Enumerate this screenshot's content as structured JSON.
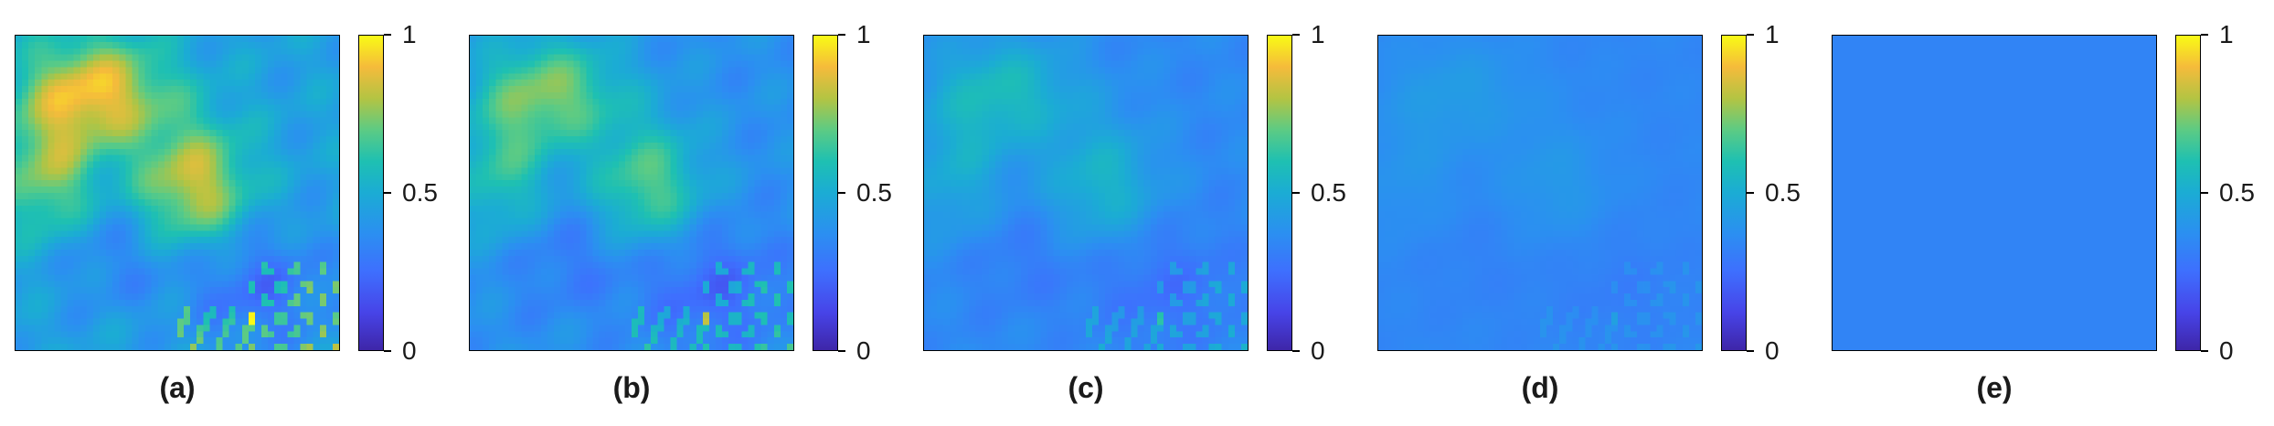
{
  "chart_data": [
    {
      "type": "heatmap",
      "label": "(a)",
      "level": 0.55,
      "contrast": 1.0,
      "colorbar": {
        "ticks": [
          "0",
          "0.5",
          "1"
        ],
        "range": [
          0,
          1
        ]
      }
    },
    {
      "type": "heatmap",
      "label": "(b)",
      "level": 0.46,
      "contrast": 0.78,
      "colorbar": {
        "ticks": [
          "0",
          "0.5",
          "1"
        ],
        "range": [
          0,
          1
        ]
      }
    },
    {
      "type": "heatmap",
      "label": "(c)",
      "level": 0.4,
      "contrast": 0.48,
      "colorbar": {
        "ticks": [
          "0",
          "0.5",
          "1"
        ],
        "range": [
          0,
          1
        ]
      }
    },
    {
      "type": "heatmap",
      "label": "(d)",
      "level": 0.36,
      "contrast": 0.18,
      "colorbar": {
        "ticks": [
          "0",
          "0.5",
          "1"
        ],
        "range": [
          0,
          1
        ]
      }
    },
    {
      "type": "heatmap",
      "label": "(e)",
      "level": 0.33,
      "contrast": 0.0,
      "colorbar": {
        "ticks": [
          "0",
          "0.5",
          "1"
        ],
        "range": [
          0,
          1
        ]
      }
    }
  ]
}
